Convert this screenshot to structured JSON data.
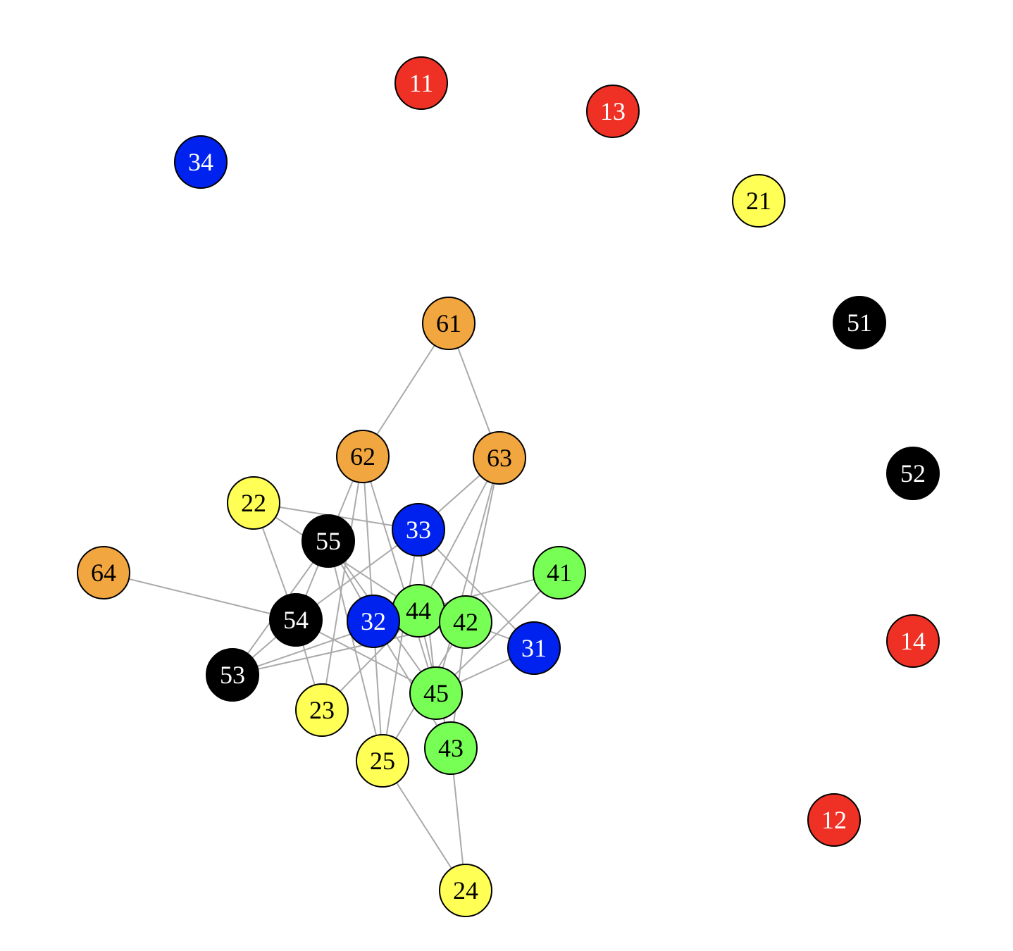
{
  "graph": {
    "colors": {
      "red": "#ee3124",
      "yellow": "#ffff55",
      "blue": "#0022ee",
      "green": "#77ff55",
      "black": "#000000",
      "orange": "#f2a640",
      "edge": "#aaaaaa"
    },
    "nodes": [
      {
        "id": "11",
        "label": "11",
        "group": "red",
        "text_color": "#ffffff"
      },
      {
        "id": "13",
        "label": "13",
        "group": "red",
        "text_color": "#ffffff"
      },
      {
        "id": "34",
        "label": "34",
        "group": "blue",
        "text_color": "#ffffff"
      },
      {
        "id": "21",
        "label": "21",
        "group": "yellow",
        "text_color": "#000000"
      },
      {
        "id": "61",
        "label": "61",
        "group": "orange",
        "text_color": "#000000"
      },
      {
        "id": "51",
        "label": "51",
        "group": "black",
        "text_color": "#ffffff"
      },
      {
        "id": "62",
        "label": "62",
        "group": "orange",
        "text_color": "#000000"
      },
      {
        "id": "63",
        "label": "63",
        "group": "orange",
        "text_color": "#000000"
      },
      {
        "id": "52",
        "label": "52",
        "group": "black",
        "text_color": "#ffffff"
      },
      {
        "id": "22",
        "label": "22",
        "group": "yellow",
        "text_color": "#000000"
      },
      {
        "id": "33",
        "label": "33",
        "group": "blue",
        "text_color": "#ffffff"
      },
      {
        "id": "55",
        "label": "55",
        "group": "black",
        "text_color": "#ffffff"
      },
      {
        "id": "64",
        "label": "64",
        "group": "orange",
        "text_color": "#000000"
      },
      {
        "id": "41",
        "label": "41",
        "group": "green",
        "text_color": "#000000"
      },
      {
        "id": "44",
        "label": "44",
        "group": "green",
        "text_color": "#000000"
      },
      {
        "id": "42",
        "label": "42",
        "group": "green",
        "text_color": "#000000"
      },
      {
        "id": "54",
        "label": "54",
        "group": "black",
        "text_color": "#ffffff"
      },
      {
        "id": "32",
        "label": "32",
        "group": "blue",
        "text_color": "#ffffff"
      },
      {
        "id": "14",
        "label": "14",
        "group": "red",
        "text_color": "#ffffff"
      },
      {
        "id": "31",
        "label": "31",
        "group": "blue",
        "text_color": "#ffffff"
      },
      {
        "id": "53",
        "label": "53",
        "group": "black",
        "text_color": "#ffffff"
      },
      {
        "id": "45",
        "label": "45",
        "group": "green",
        "text_color": "#000000"
      },
      {
        "id": "23",
        "label": "23",
        "group": "yellow",
        "text_color": "#000000"
      },
      {
        "id": "43",
        "label": "43",
        "group": "green",
        "text_color": "#000000"
      },
      {
        "id": "25",
        "label": "25",
        "group": "yellow",
        "text_color": "#000000"
      },
      {
        "id": "12",
        "label": "12",
        "group": "red",
        "text_color": "#ffffff"
      },
      {
        "id": "24",
        "label": "24",
        "group": "yellow",
        "text_color": "#000000"
      }
    ],
    "edges": [
      [
        "61",
        "62"
      ],
      [
        "61",
        "63"
      ],
      [
        "62",
        "54"
      ],
      [
        "62",
        "32"
      ],
      [
        "62",
        "45"
      ],
      [
        "63",
        "33"
      ],
      [
        "63",
        "44"
      ],
      [
        "63",
        "42"
      ],
      [
        "63",
        "45"
      ],
      [
        "22",
        "33"
      ],
      [
        "22",
        "54"
      ],
      [
        "22",
        "44"
      ],
      [
        "55",
        "32"
      ],
      [
        "55",
        "45"
      ],
      [
        "33",
        "54"
      ],
      [
        "33",
        "45"
      ],
      [
        "33",
        "31"
      ],
      [
        "33",
        "25"
      ],
      [
        "64",
        "54"
      ],
      [
        "41",
        "44"
      ],
      [
        "41",
        "45"
      ],
      [
        "44",
        "53"
      ],
      [
        "44",
        "43"
      ],
      [
        "44",
        "23"
      ],
      [
        "42",
        "31"
      ],
      [
        "42",
        "53"
      ],
      [
        "42",
        "25"
      ],
      [
        "42",
        "43"
      ],
      [
        "54",
        "53"
      ],
      [
        "54",
        "45"
      ],
      [
        "54",
        "23"
      ],
      [
        "53",
        "55"
      ],
      [
        "55",
        "25"
      ],
      [
        "32",
        "43"
      ],
      [
        "32",
        "25"
      ],
      [
        "31",
        "45"
      ],
      [
        "23",
        "62"
      ],
      [
        "25",
        "24"
      ],
      [
        "43",
        "24"
      ]
    ]
  }
}
